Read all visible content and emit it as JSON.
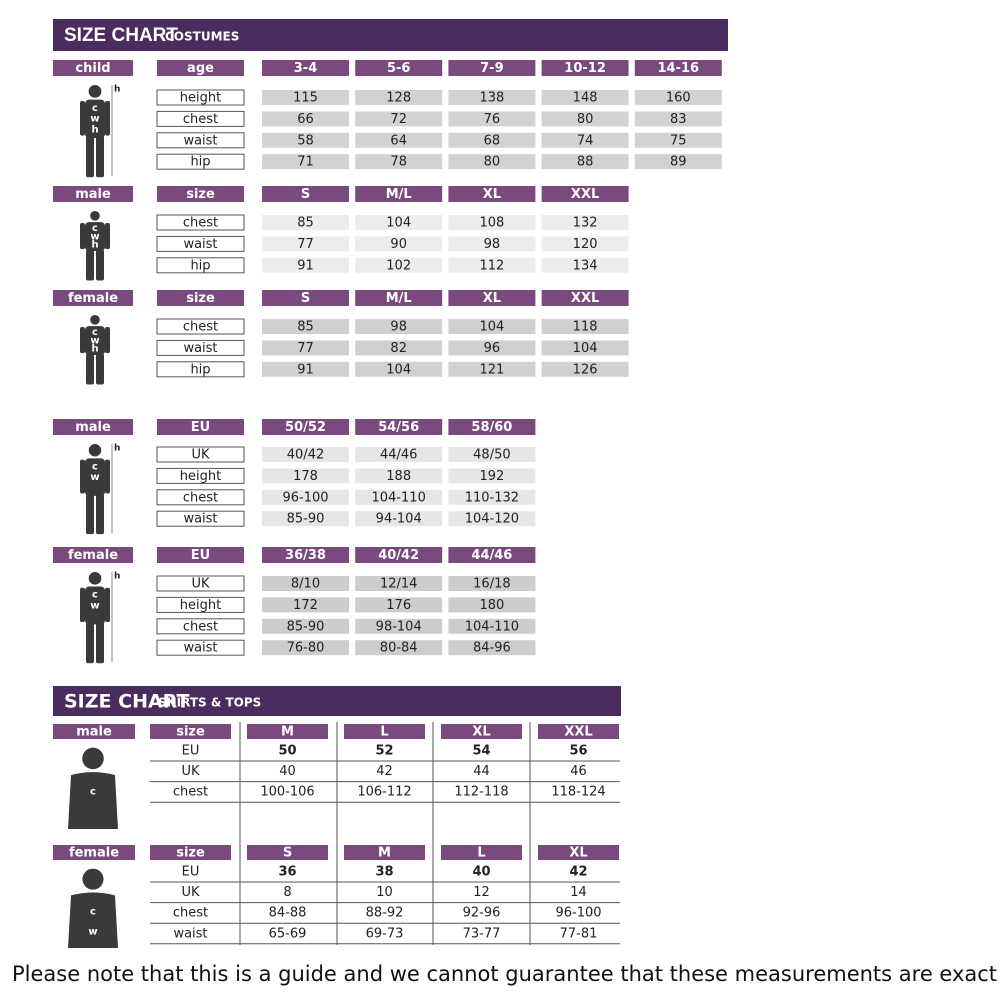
{
  "costumes": {
    "title": "SIZE CHART",
    "subtitle": "COSTUMES",
    "sections": [
      {
        "group": "child",
        "header_label": "age",
        "columns": [
          "3-4",
          "5-6",
          "7-9",
          "10-12",
          "14-16"
        ],
        "height_mark": "h",
        "body_marks": [
          "c",
          "w",
          "h"
        ],
        "rows": [
          {
            "label": "height",
            "values": [
              115,
              128,
              138,
              148,
              160
            ]
          },
          {
            "label": "chest",
            "values": [
              66,
              72,
              76,
              80,
              83
            ]
          },
          {
            "label": "waist",
            "values": [
              58,
              64,
              68,
              74,
              75
            ]
          },
          {
            "label": "hip",
            "values": [
              71,
              78,
              80,
              88,
              89
            ]
          }
        ]
      },
      {
        "group": "male",
        "header_label": "size",
        "columns": [
          "S",
          "M/L",
          "XL",
          "XXL"
        ],
        "body_marks": [
          "c",
          "w",
          "h"
        ],
        "rows": [
          {
            "label": "chest",
            "values": [
              85,
              104,
              108,
              132
            ]
          },
          {
            "label": "waist",
            "values": [
              77,
              90,
              98,
              120
            ]
          },
          {
            "label": "hip",
            "values": [
              91,
              102,
              112,
              134
            ]
          }
        ]
      },
      {
        "group": "female",
        "header_label": "size",
        "columns": [
          "S",
          "M/L",
          "XL",
          "XXL"
        ],
        "body_marks": [
          "c",
          "w",
          "h"
        ],
        "rows": [
          {
            "label": "chest",
            "values": [
              85,
              98,
              104,
              118
            ]
          },
          {
            "label": "waist",
            "values": [
              77,
              82,
              96,
              104
            ]
          },
          {
            "label": "hip",
            "values": [
              91,
              104,
              121,
              126
            ]
          }
        ]
      },
      {
        "group": "male",
        "header_label": "EU",
        "columns": [
          "50/52",
          "54/56",
          "58/60"
        ],
        "height_mark": "h",
        "body_marks": [
          "c",
          "w"
        ],
        "rows": [
          {
            "label": "UK",
            "values": [
              "40/42",
              "44/46",
              "48/50"
            ]
          },
          {
            "label": "height",
            "values": [
              178,
              188,
              192
            ]
          },
          {
            "label": "chest",
            "values": [
              "96-100",
              "104-110",
              "110-132"
            ]
          },
          {
            "label": "waist",
            "values": [
              "85-90",
              "94-104",
              "104-120"
            ]
          }
        ]
      },
      {
        "group": "female",
        "header_label": "EU",
        "columns": [
          "36/38",
          "40/42",
          "44/46"
        ],
        "height_mark": "h",
        "body_marks": [
          "c",
          "w"
        ],
        "rows": [
          {
            "label": "UK",
            "values": [
              "8/10",
              "12/14",
              "16/18"
            ]
          },
          {
            "label": "height",
            "values": [
              172,
              176,
              180
            ]
          },
          {
            "label": "chest",
            "values": [
              "85-90",
              "98-104",
              "104-110"
            ]
          },
          {
            "label": "waist",
            "values": [
              "76-80",
              "80-84",
              "84-96"
            ]
          }
        ]
      }
    ]
  },
  "shirts": {
    "title": "SIZE CHART",
    "subtitle": "SHIRTS & TOPS",
    "sections": [
      {
        "group": "male",
        "header_label": "size",
        "columns": [
          "M",
          "L",
          "XL",
          "XXL"
        ],
        "body_marks": [
          "c"
        ],
        "rows": [
          {
            "label": "EU",
            "values": [
              50,
              52,
              54,
              56
            ]
          },
          {
            "label": "UK",
            "values": [
              40,
              42,
              44,
              46
            ]
          },
          {
            "label": "chest",
            "values": [
              "100-106",
              "106-112",
              "112-118",
              "118-124"
            ]
          }
        ]
      },
      {
        "group": "female",
        "header_label": "size",
        "columns": [
          "S",
          "M",
          "L",
          "XL"
        ],
        "body_marks": [
          "c",
          "w"
        ],
        "rows": [
          {
            "label": "EU",
            "values": [
              36,
              38,
              40,
              42
            ]
          },
          {
            "label": "UK",
            "values": [
              8,
              10,
              12,
              14
            ]
          },
          {
            "label": "chest",
            "values": [
              "84-88",
              "88-92",
              "92-96",
              "96-100"
            ]
          },
          {
            "label": "waist",
            "values": [
              "65-69",
              "69-73",
              "73-77",
              "77-81"
            ]
          }
        ]
      }
    ]
  },
  "note": "Please note that this is a guide and we cannot guarantee that these measurements are exact"
}
